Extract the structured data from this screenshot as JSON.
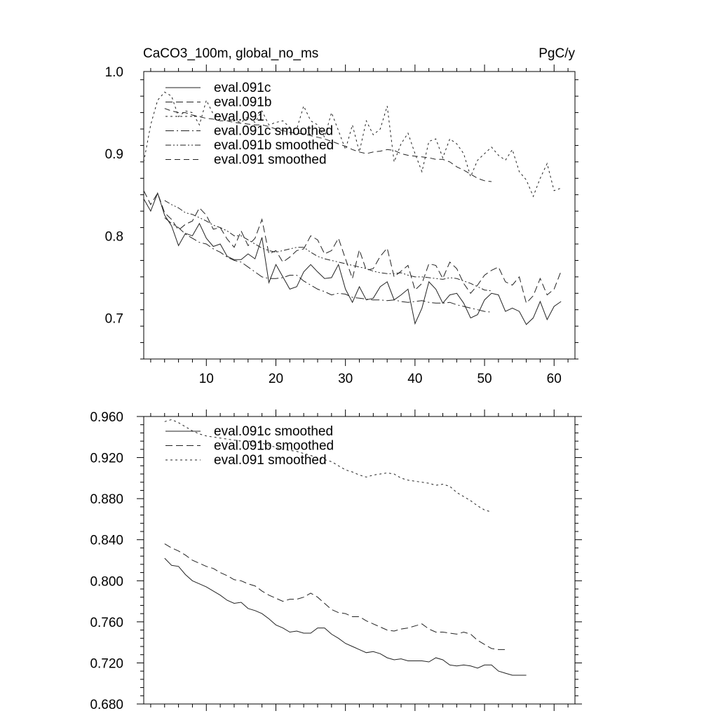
{
  "header": {
    "left_title": "CaCO3_100m, global_no_ms",
    "right_title": "PgC/y"
  },
  "chart_data": [
    {
      "type": "line",
      "xlim": [
        1,
        63
      ],
      "ylim": [
        0.65,
        1.0
      ],
      "x_ticks": [
        10,
        20,
        30,
        40,
        50,
        60
      ],
      "x_tick_labels": [
        "10",
        "20",
        "30",
        "40",
        "50",
        "60"
      ],
      "y_ticks": [
        0.7,
        0.8,
        0.9,
        1.0
      ],
      "y_tick_labels": [
        "0.7",
        "0.8",
        "0.9",
        "1.0"
      ],
      "legend": "top-left",
      "series": [
        {
          "name": "eval.091c",
          "dash": "",
          "x_start": 1,
          "values": [
            0.845,
            0.83,
            0.852,
            0.825,
            0.812,
            0.788,
            0.803,
            0.8,
            0.815,
            0.797,
            0.787,
            0.79,
            0.775,
            0.771,
            0.771,
            0.778,
            0.772,
            0.798,
            0.743,
            0.765,
            0.75,
            0.735,
            0.738,
            0.756,
            0.765,
            0.756,
            0.748,
            0.749,
            0.765,
            0.735,
            0.719,
            0.738,
            0.722,
            0.724,
            0.738,
            0.744,
            0.722,
            0.728,
            0.735,
            0.693,
            0.712,
            0.744,
            0.735,
            0.718,
            0.728,
            0.73,
            0.718,
            0.7,
            0.704,
            0.722,
            0.73,
            0.728,
            0.708,
            0.712,
            0.708,
            0.692,
            0.7,
            0.72,
            0.698,
            0.714,
            0.72
          ]
        },
        {
          "name": "eval.091b",
          "dash": "10 5",
          "x_start": 1,
          "values": [
            0.855,
            0.838,
            0.852,
            0.828,
            0.82,
            0.807,
            0.814,
            0.818,
            0.834,
            0.825,
            0.808,
            0.81,
            0.796,
            0.786,
            0.806,
            0.788,
            0.797,
            0.82,
            0.778,
            0.782,
            0.768,
            0.774,
            0.782,
            0.784,
            0.8,
            0.795,
            0.778,
            0.782,
            0.797,
            0.772,
            0.748,
            0.783,
            0.758,
            0.76,
            0.775,
            0.785,
            0.75,
            0.757,
            0.764,
            0.734,
            0.742,
            0.766,
            0.764,
            0.748,
            0.768,
            0.76,
            0.742,
            0.73,
            0.74,
            0.752,
            0.758,
            0.762,
            0.744,
            0.74,
            0.75,
            0.718,
            0.727,
            0.748,
            0.728,
            0.735,
            0.757
          ]
        },
        {
          "name": "eval.091",
          "dash": "3 4",
          "x_start": 1,
          "values": [
            0.89,
            0.935,
            0.965,
            0.975,
            0.97,
            0.945,
            0.952,
            0.95,
            0.935,
            0.965,
            0.948,
            0.945,
            0.94,
            0.94,
            0.938,
            0.945,
            0.938,
            0.952,
            0.935,
            0.938,
            0.94,
            0.932,
            0.93,
            0.958,
            0.94,
            0.935,
            0.92,
            0.95,
            0.928,
            0.905,
            0.935,
            0.902,
            0.94,
            0.923,
            0.93,
            0.958,
            0.89,
            0.912,
            0.925,
            0.9,
            0.878,
            0.915,
            0.918,
            0.895,
            0.918,
            0.912,
            0.9,
            0.872,
            0.892,
            0.9,
            0.908,
            0.898,
            0.892,
            0.905,
            0.878,
            0.868,
            0.848,
            0.87,
            0.888,
            0.855,
            0.858
          ]
        },
        {
          "name": "eval.091c smoothed",
          "dash": "12 4 2 4",
          "x_start": 4,
          "values": [
            0.822,
            0.815,
            0.81,
            0.802,
            0.797,
            0.792,
            0.79,
            0.784,
            0.78,
            0.774,
            0.77,
            0.768,
            0.762,
            0.756,
            0.75,
            0.748,
            0.748,
            0.749,
            0.752,
            0.752,
            0.745,
            0.74,
            0.735,
            0.732,
            0.728,
            0.73,
            0.729,
            0.725,
            0.724,
            0.723,
            0.722,
            0.722,
            0.721,
            0.722,
            0.72,
            0.719,
            0.72,
            0.721,
            0.719,
            0.718,
            0.718,
            0.719,
            0.716,
            0.714,
            0.712,
            0.71,
            0.708,
            0.707
          ]
        },
        {
          "name": "eval.091b smoothed",
          "dash": "8 3 2 3 2 3",
          "x_start": 4,
          "values": [
            0.843,
            0.838,
            0.834,
            0.828,
            0.826,
            0.822,
            0.818,
            0.813,
            0.81,
            0.806,
            0.8,
            0.8,
            0.795,
            0.79,
            0.785,
            0.782,
            0.78,
            0.782,
            0.784,
            0.786,
            0.786,
            0.78,
            0.775,
            0.772,
            0.77,
            0.768,
            0.766,
            0.764,
            0.762,
            0.76,
            0.757,
            0.755,
            0.754,
            0.754,
            0.755,
            0.752,
            0.75,
            0.75,
            0.749,
            0.748,
            0.747,
            0.749,
            0.748,
            0.745,
            0.742,
            0.738,
            0.734,
            0.733
          ]
        },
        {
          "name": "eval.091 smoothed",
          "dash": "8 5",
          "x_start": 4,
          "values": [
            0.955,
            0.952,
            0.95,
            0.95,
            0.947,
            0.945,
            0.943,
            0.942,
            0.94,
            0.94,
            0.938,
            0.937,
            0.936,
            0.935,
            0.935,
            0.933,
            0.93,
            0.928,
            0.926,
            0.925,
            0.924,
            0.922,
            0.92,
            0.918,
            0.915,
            0.912,
            0.909,
            0.905,
            0.902,
            0.9,
            0.902,
            0.903,
            0.905,
            0.904,
            0.9,
            0.898,
            0.897,
            0.896,
            0.895,
            0.893,
            0.893,
            0.89,
            0.884,
            0.88,
            0.875,
            0.87,
            0.867,
            0.866
          ]
        }
      ]
    },
    {
      "type": "line",
      "xlim": [
        1,
        63
      ],
      "ylim": [
        0.68,
        0.96
      ],
      "x_ticks": [
        10,
        20,
        30,
        40,
        50,
        60
      ],
      "x_tick_labels": [],
      "y_ticks": [
        0.68,
        0.72,
        0.76,
        0.8,
        0.84,
        0.88,
        0.92,
        0.96
      ],
      "y_tick_labels": [
        "0.680",
        "0.720",
        "0.760",
        "0.800",
        "0.840",
        "0.880",
        "0.920",
        "0.960"
      ],
      "legend": "top-left",
      "series": [
        {
          "name": "eval.091c smoothed",
          "dash": "",
          "x_start": 4,
          "values": [
            0.822,
            0.815,
            0.814,
            0.806,
            0.8,
            0.797,
            0.794,
            0.79,
            0.786,
            0.781,
            0.778,
            0.779,
            0.773,
            0.771,
            0.768,
            0.763,
            0.757,
            0.754,
            0.75,
            0.751,
            0.749,
            0.749,
            0.754,
            0.754,
            0.748,
            0.744,
            0.739,
            0.736,
            0.733,
            0.73,
            0.731,
            0.729,
            0.725,
            0.723,
            0.724,
            0.722,
            0.722,
            0.722,
            0.721,
            0.725,
            0.723,
            0.718,
            0.717,
            0.718,
            0.717,
            0.715,
            0.718,
            0.718,
            0.712,
            0.71,
            0.708,
            0.708,
            0.708
          ]
        },
        {
          "name": "eval.091b smoothed",
          "dash": "10 5",
          "x_start": 4,
          "values": [
            0.836,
            0.832,
            0.829,
            0.825,
            0.82,
            0.817,
            0.814,
            0.812,
            0.808,
            0.805,
            0.801,
            0.8,
            0.797,
            0.795,
            0.79,
            0.786,
            0.783,
            0.78,
            0.782,
            0.782,
            0.784,
            0.788,
            0.784,
            0.778,
            0.772,
            0.769,
            0.768,
            0.765,
            0.765,
            0.761,
            0.758,
            0.755,
            0.752,
            0.751,
            0.753,
            0.754,
            0.756,
            0.758,
            0.753,
            0.75,
            0.75,
            0.749,
            0.748,
            0.75,
            0.748,
            0.742,
            0.738,
            0.734,
            0.733,
            0.733
          ]
        },
        {
          "name": "eval.091 smoothed",
          "dash": "3 4",
          "x_start": 4,
          "values": [
            0.955,
            0.957,
            0.954,
            0.95,
            0.946,
            0.943,
            0.941,
            0.94,
            0.939,
            0.938,
            0.937,
            0.936,
            0.936,
            0.935,
            0.934,
            0.932,
            0.93,
            0.928,
            0.927,
            0.926,
            0.924,
            0.922,
            0.92,
            0.918,
            0.916,
            0.912,
            0.908,
            0.906,
            0.903,
            0.901,
            0.903,
            0.904,
            0.905,
            0.904,
            0.9,
            0.898,
            0.897,
            0.896,
            0.895,
            0.893,
            0.894,
            0.892,
            0.886,
            0.882,
            0.878,
            0.873,
            0.869,
            0.867
          ]
        }
      ]
    }
  ]
}
